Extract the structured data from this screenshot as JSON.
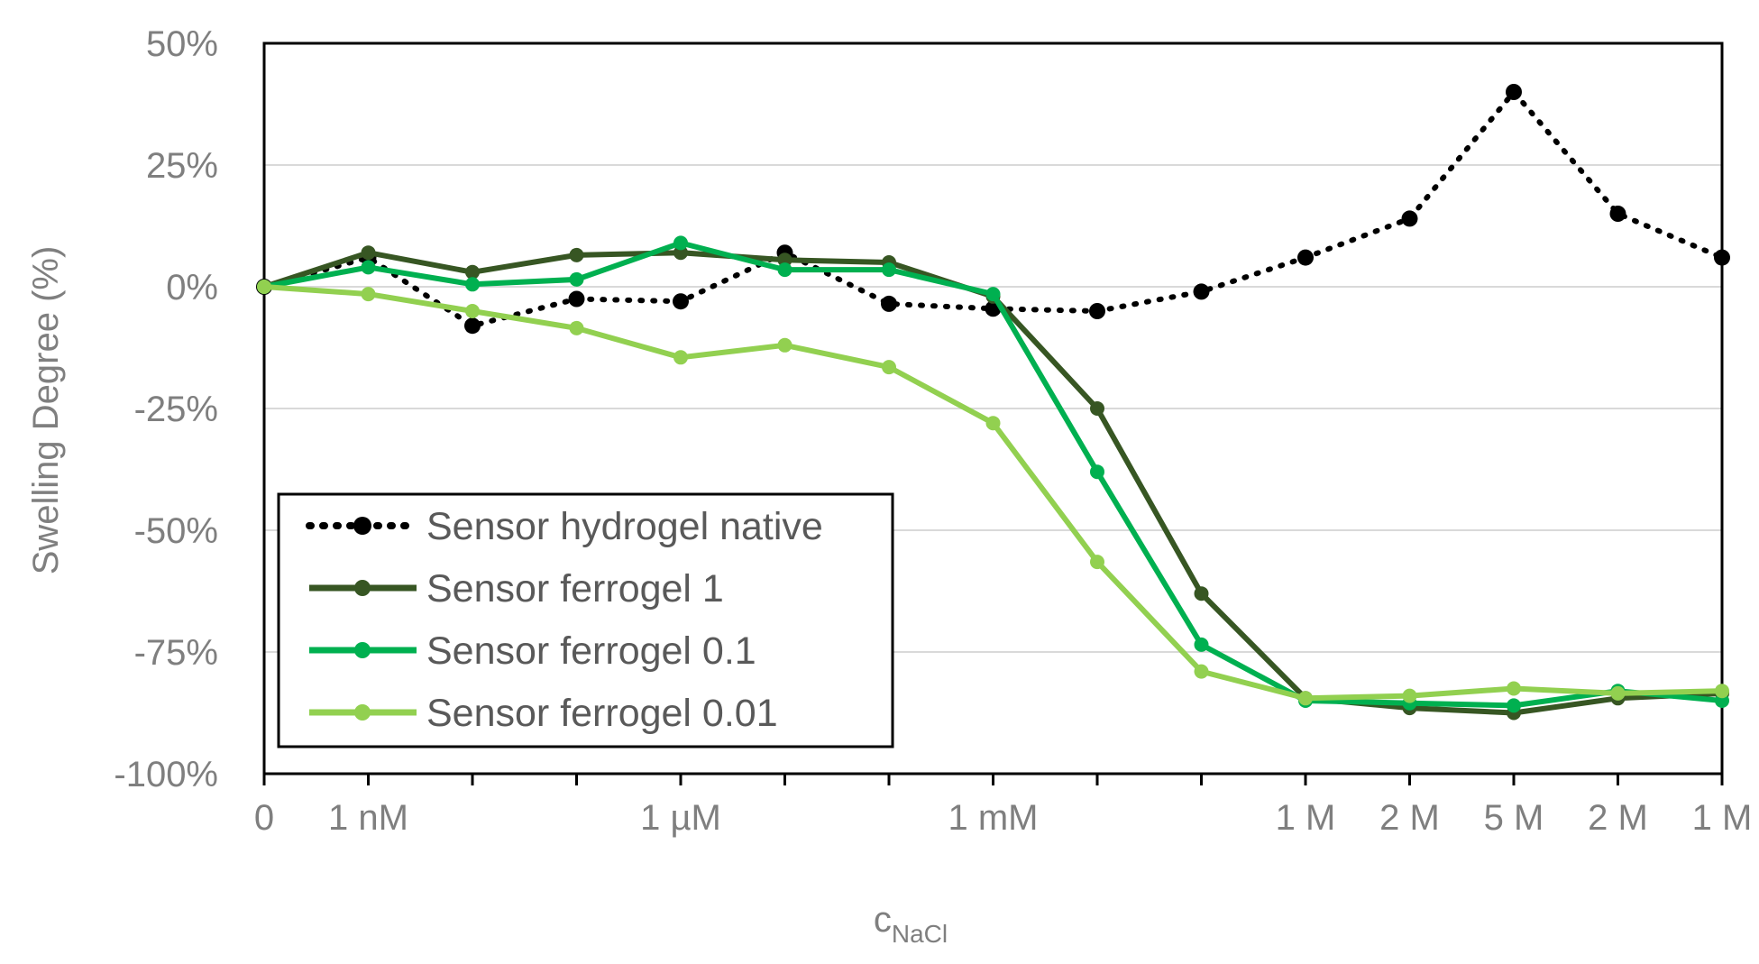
{
  "chart_data": {
    "type": "line",
    "title": "",
    "xlabel": "c",
    "xlabel_sub": "NaCl",
    "ylabel": "Swelling Degree  (%)",
    "ylim": [
      -100,
      50
    ],
    "yticks": [
      50,
      25,
      0,
      -25,
      -50,
      -75,
      -100
    ],
    "ytick_labels": [
      "50%",
      "25%",
      "0%",
      "-25%",
      "-50%",
      "-75%",
      "-100%"
    ],
    "grid": true,
    "n_points": 15,
    "xtick_labels": [
      {
        "i": 0,
        "label": "0"
      },
      {
        "i": 1,
        "label": "1 nM"
      },
      {
        "i": 4,
        "label": "1 µM"
      },
      {
        "i": 7,
        "label": "1 mM"
      },
      {
        "i": 10,
        "label": "1 M"
      },
      {
        "i": 11,
        "label": "2 M"
      },
      {
        "i": 12,
        "label": "5 M"
      },
      {
        "i": 13,
        "label": "2 M"
      },
      {
        "i": 14,
        "label": "1 M"
      }
    ],
    "legend_position": "bottom-left",
    "series": [
      {
        "name": "Sensor hydrogel native",
        "color": "#000000",
        "style": "dotted",
        "values": [
          0,
          6,
          -8,
          -2.5,
          -3,
          7,
          -3.5,
          -4.5,
          -5,
          -1,
          6,
          14,
          40,
          15,
          6
        ]
      },
      {
        "name": "Sensor ferrogel 1",
        "color": "#375623",
        "style": "solid",
        "values": [
          0,
          7,
          3,
          6.5,
          7,
          5.5,
          5,
          -2,
          -25,
          -63,
          -84.5,
          -86.5,
          -87.5,
          -84.5,
          -83.5
        ]
      },
      {
        "name": "Sensor ferrogel 0.1",
        "color": "#00b050",
        "style": "solid",
        "values": [
          0,
          4,
          0.5,
          1.5,
          9,
          3.5,
          3.5,
          -1.5,
          -38,
          -73.5,
          -85,
          -85.5,
          -86,
          -83,
          -85
        ]
      },
      {
        "name": "Sensor ferrogel 0.01",
        "color": "#92d050",
        "style": "solid",
        "values": [
          0,
          -1.5,
          -5,
          -8.5,
          -14.5,
          -12,
          -16.5,
          -28,
          -56.5,
          -79,
          -84.5,
          -84,
          -82.5,
          -83.5,
          -83
        ]
      }
    ]
  }
}
